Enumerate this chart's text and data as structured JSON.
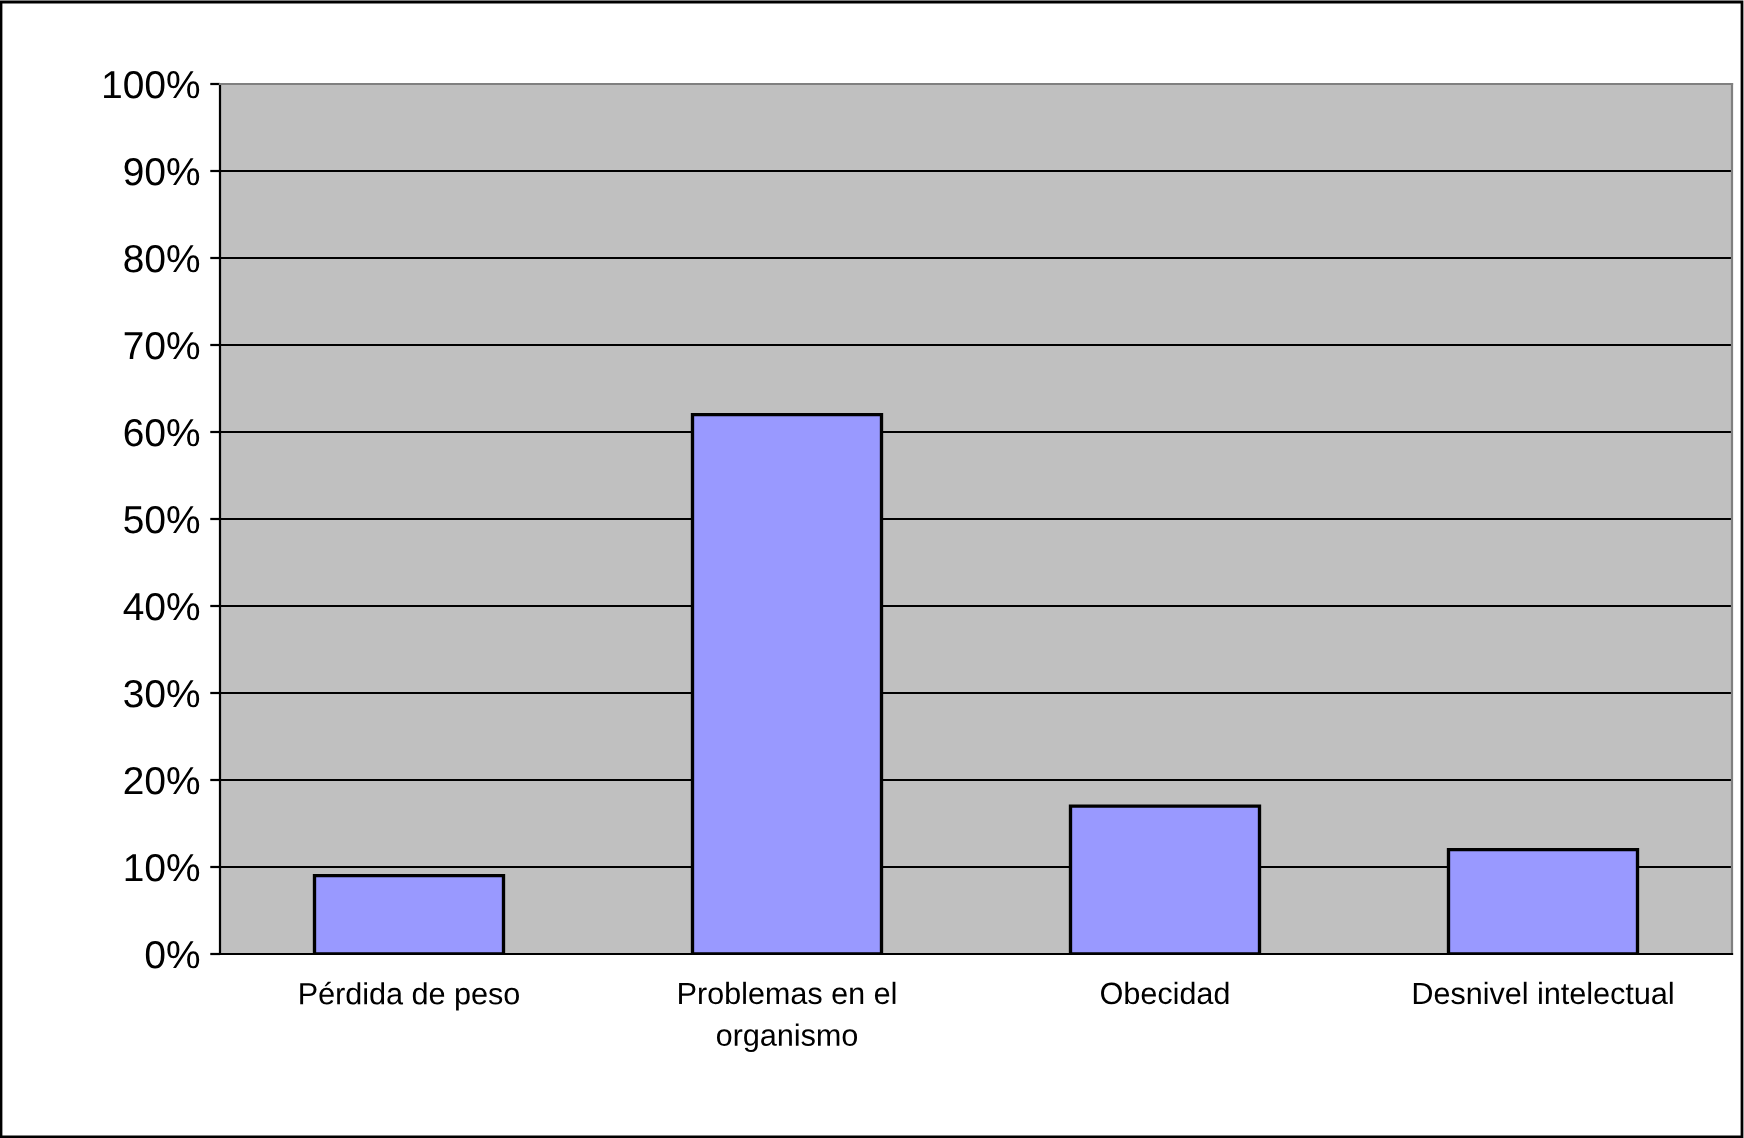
{
  "chart_data": {
    "type": "bar",
    "categories": [
      "Pérdida de peso",
      "Problemas en el\norganismo",
      "Obecidad",
      "Desnivel intelectual"
    ],
    "values": [
      9,
      62,
      17,
      12
    ],
    "color": "#9999ff",
    "ylim": [
      0,
      100
    ],
    "yticks": [
      {
        "value": 0,
        "label": "0%"
      },
      {
        "value": 10,
        "label": "10%"
      },
      {
        "value": 20,
        "label": "20%"
      },
      {
        "value": 30,
        "label": "30%"
      },
      {
        "value": 40,
        "label": "40%"
      },
      {
        "value": 50,
        "label": "50%"
      },
      {
        "value": 60,
        "label": "60%"
      },
      {
        "value": 70,
        "label": "70%"
      },
      {
        "value": 80,
        "label": "80%"
      },
      {
        "value": 90,
        "label": "90%"
      },
      {
        "value": 100,
        "label": "100%"
      }
    ],
    "grid": "y"
  }
}
